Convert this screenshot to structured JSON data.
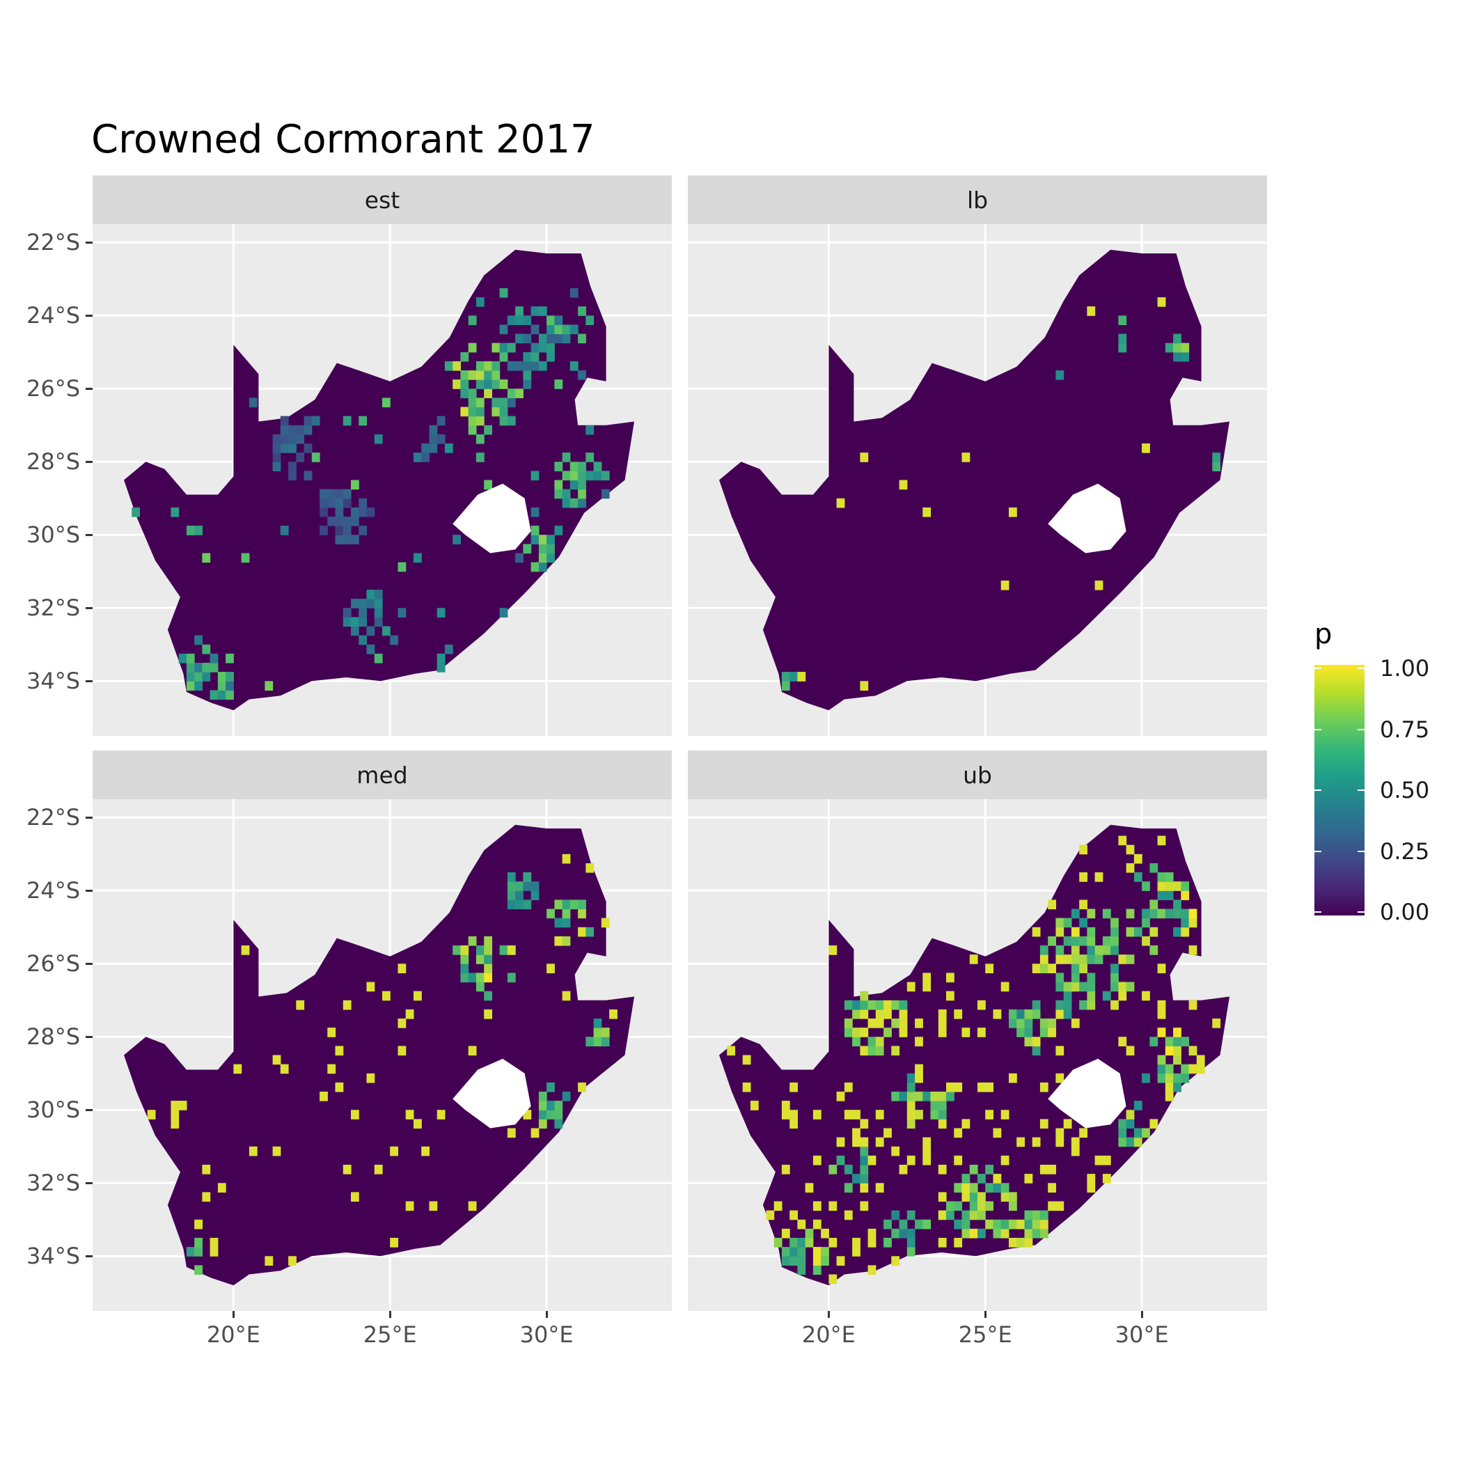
{
  "title": "Crowned Cormorant 2017",
  "facets": [
    "est",
    "lb",
    "med",
    "ub"
  ],
  "y_ticks": [
    "22°S",
    "24°S",
    "26°S",
    "28°S",
    "30°S",
    "32°S",
    "34°S"
  ],
  "x_ticks": [
    "20°E",
    "25°E",
    "30°E"
  ],
  "legend": {
    "title": "p",
    "labels": [
      "1.00",
      "0.75",
      "0.50",
      "0.25",
      "0.00"
    ]
  },
  "colors": {
    "low": "#440154",
    "mid": "#21918c",
    "high": "#fde725",
    "panel_bg": "#ebebeb",
    "grid": "#ffffff"
  },
  "chart_data": {
    "type": "heatmap",
    "title": "Crowned Cormorant 2017",
    "xlim": [
      15.5,
      34
    ],
    "ylim": [
      -35.5,
      -21.5
    ],
    "fill_variable": "p",
    "fill_range": [
      0,
      1
    ],
    "colormap": "viridis",
    "grid": true,
    "legend_position": "right",
    "country_outline": [
      [
        16.5,
        -28.5
      ],
      [
        17.2,
        -28.0
      ],
      [
        17.8,
        -28.2
      ],
      [
        18.5,
        -28.9
      ],
      [
        19.5,
        -28.9
      ],
      [
        20.0,
        -28.4
      ],
      [
        20.0,
        -24.8
      ],
      [
        20.8,
        -25.6
      ],
      [
        20.8,
        -26.9
      ],
      [
        21.7,
        -26.8
      ],
      [
        22.6,
        -26.3
      ],
      [
        23.3,
        -25.3
      ],
      [
        24.0,
        -25.5
      ],
      [
        25.0,
        -25.8
      ],
      [
        26.0,
        -25.4
      ],
      [
        26.9,
        -24.6
      ],
      [
        27.5,
        -23.6
      ],
      [
        28.0,
        -22.9
      ],
      [
        29.0,
        -22.2
      ],
      [
        30.0,
        -22.3
      ],
      [
        31.1,
        -22.3
      ],
      [
        31.4,
        -23.2
      ],
      [
        31.9,
        -24.3
      ],
      [
        31.9,
        -25.8
      ],
      [
        31.3,
        -25.7
      ],
      [
        30.9,
        -26.3
      ],
      [
        31.0,
        -27.0
      ],
      [
        31.9,
        -27.0
      ],
      [
        32.8,
        -26.9
      ],
      [
        32.5,
        -28.5
      ],
      [
        31.2,
        -29.4
      ],
      [
        30.4,
        -30.6
      ],
      [
        29.3,
        -31.6
      ],
      [
        28.0,
        -32.7
      ],
      [
        26.6,
        -33.7
      ],
      [
        25.8,
        -33.8
      ],
      [
        24.7,
        -34.0
      ],
      [
        23.6,
        -33.9
      ],
      [
        22.5,
        -34.0
      ],
      [
        21.5,
        -34.4
      ],
      [
        20.5,
        -34.5
      ],
      [
        20.0,
        -34.8
      ],
      [
        19.3,
        -34.6
      ],
      [
        18.5,
        -34.3
      ],
      [
        18.4,
        -33.8
      ],
      [
        17.9,
        -32.6
      ],
      [
        18.3,
        -31.7
      ],
      [
        17.5,
        -30.7
      ],
      [
        16.9,
        -29.5
      ],
      [
        16.5,
        -28.5
      ]
    ],
    "excluded_region": [
      [
        27.0,
        -29.7
      ],
      [
        27.8,
        -28.9
      ],
      [
        28.6,
        -28.6
      ],
      [
        29.3,
        -29.0
      ],
      [
        29.5,
        -29.9
      ],
      [
        29.0,
        -30.4
      ],
      [
        28.2,
        -30.5
      ],
      [
        27.4,
        -30.0
      ],
      [
        27.0,
        -29.7
      ]
    ],
    "hotspots": {
      "est": [
        {
          "lon": 28.0,
          "lat": -26.0,
          "r": 1.3,
          "p": 0.95
        },
        {
          "lon": 29.5,
          "lat": -24.7,
          "r": 1.1,
          "p": 0.6
        },
        {
          "lon": 30.8,
          "lat": -24.5,
          "r": 0.8,
          "p": 0.75
        },
        {
          "lon": 31.0,
          "lat": -28.5,
          "r": 0.9,
          "p": 0.8
        },
        {
          "lon": 30.0,
          "lat": -30.5,
          "r": 0.8,
          "p": 0.85
        },
        {
          "lon": 19.0,
          "lat": -34.0,
          "r": 0.9,
          "p": 0.8
        },
        {
          "lon": 24.5,
          "lat": -32.3,
          "r": 0.9,
          "p": 0.55
        },
        {
          "lon": 22.0,
          "lat": -27.5,
          "r": 1.0,
          "p": 0.4
        },
        {
          "lon": 27.0,
          "lat": -33.6,
          "r": 0.6,
          "p": 0.7
        },
        {
          "lon": 23.5,
          "lat": -29.5,
          "r": 0.9,
          "p": 0.35
        },
        {
          "lon": 26.5,
          "lat": -27.5,
          "r": 0.8,
          "p": 0.5
        }
      ],
      "lb": [
        {
          "lon": 29.5,
          "lat": -24.5,
          "r": 0.5,
          "p": 0.9
        },
        {
          "lon": 31.2,
          "lat": -24.8,
          "r": 0.4,
          "p": 0.9
        },
        {
          "lon": 18.8,
          "lat": -34.1,
          "r": 0.3,
          "p": 0.9
        },
        {
          "lon": 27.6,
          "lat": -25.6,
          "r": 0.3,
          "p": 0.8
        },
        {
          "lon": 32.4,
          "lat": -28.0,
          "r": 0.3,
          "p": 0.7
        }
      ],
      "med": [
        {
          "lon": 28.0,
          "lat": -26.0,
          "r": 1.0,
          "p": 1.0
        },
        {
          "lon": 30.8,
          "lat": -24.8,
          "r": 0.7,
          "p": 0.9
        },
        {
          "lon": 30.2,
          "lat": -29.9,
          "r": 0.6,
          "p": 0.9
        },
        {
          "lon": 18.7,
          "lat": -34.0,
          "r": 0.5,
          "p": 0.9
        },
        {
          "lon": 31.8,
          "lat": -27.9,
          "r": 0.5,
          "p": 0.85
        },
        {
          "lon": 29.2,
          "lat": -24.0,
          "r": 0.6,
          "p": 0.8
        }
      ],
      "ub": [
        {
          "lon": 28.3,
          "lat": -26.0,
          "r": 1.6,
          "p": 1.0
        },
        {
          "lon": 30.5,
          "lat": -24.5,
          "r": 1.2,
          "p": 1.0
        },
        {
          "lon": 31.0,
          "lat": -28.8,
          "r": 1.0,
          "p": 1.0
        },
        {
          "lon": 24.8,
          "lat": -32.5,
          "r": 1.1,
          "p": 1.0
        },
        {
          "lon": 21.5,
          "lat": -27.5,
          "r": 1.1,
          "p": 0.95
        },
        {
          "lon": 23.0,
          "lat": -29.8,
          "r": 0.9,
          "p": 0.95
        },
        {
          "lon": 19.0,
          "lat": -34.0,
          "r": 0.9,
          "p": 1.0
        },
        {
          "lon": 26.5,
          "lat": -33.5,
          "r": 0.9,
          "p": 1.0
        },
        {
          "lon": 29.8,
          "lat": -30.6,
          "r": 0.8,
          "p": 1.0
        },
        {
          "lon": 26.5,
          "lat": -27.6,
          "r": 0.8,
          "p": 0.9
        },
        {
          "lon": 22.5,
          "lat": -33.4,
          "r": 0.8,
          "p": 0.85
        },
        {
          "lon": 20.8,
          "lat": -31.5,
          "r": 0.7,
          "p": 0.8
        }
      ]
    }
  }
}
